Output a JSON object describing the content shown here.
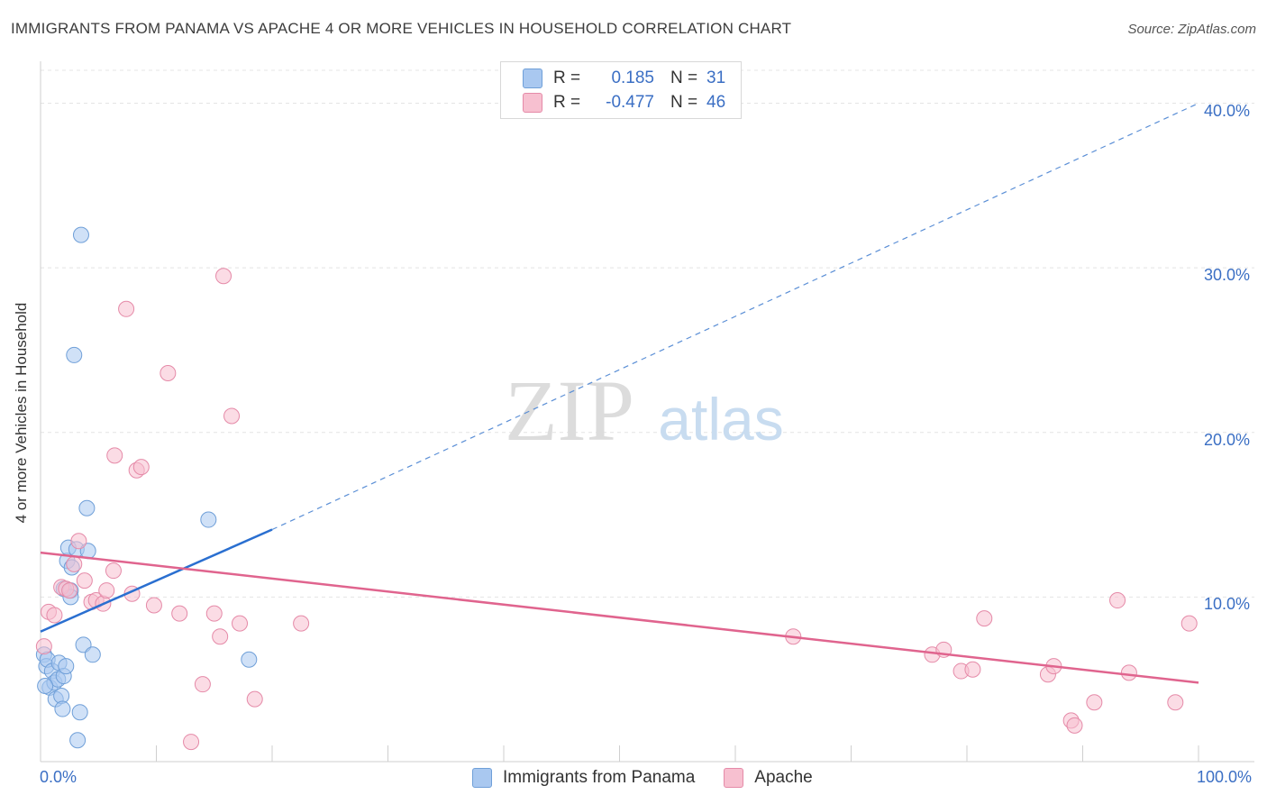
{
  "title": "IMMIGRANTS FROM PANAMA VS APACHE 4 OR MORE VEHICLES IN HOUSEHOLD CORRELATION CHART",
  "source": "Source: ZipAtlas.com",
  "watermark": {
    "zip": "ZIP",
    "atlas": "atlas"
  },
  "legend": {
    "rows": [
      {
        "r_label": "R =",
        "r_value": "0.185",
        "n_label": "N =",
        "n_value": "31",
        "color": "#a9c8f0",
        "border": "#6f9fd8"
      },
      {
        "r_label": "R =",
        "r_value": "-0.477",
        "n_label": "N =",
        "n_value": "46",
        "color": "#f7c0d0",
        "border": "#e58aa8"
      }
    ]
  },
  "chart_data": {
    "type": "scatter",
    "title": "IMMIGRANTS FROM PANAMA VS APACHE 4 OR MORE VEHICLES IN HOUSEHOLD CORRELATION CHART",
    "ylabel": "4 or more Vehicles in Household",
    "xlabel": "",
    "xlim": [
      0,
      100
    ],
    "ylim": [
      0,
      42
    ],
    "x_ticks": [
      {
        "value": 0,
        "label": "0.0%"
      },
      {
        "value": 100,
        "label": "100.0%"
      }
    ],
    "y_ticks": [
      {
        "value": 10,
        "label": "10.0%"
      },
      {
        "value": 20,
        "label": "20.0%"
      },
      {
        "value": 30,
        "label": "30.0%"
      },
      {
        "value": 40,
        "label": "40.0%"
      }
    ],
    "series": [
      {
        "name": "Immigrants from Panama",
        "color": "#6f9fd8",
        "fill": "#a9c8f0",
        "points": [
          [
            0.3,
            6.5
          ],
          [
            0.5,
            5.8
          ],
          [
            0.6,
            6.2
          ],
          [
            0.8,
            4.5
          ],
          [
            1.0,
            5.5
          ],
          [
            1.2,
            4.8
          ],
          [
            1.3,
            3.8
          ],
          [
            1.5,
            5.0
          ],
          [
            1.6,
            6.0
          ],
          [
            1.8,
            4.0
          ],
          [
            1.9,
            3.2
          ],
          [
            2.0,
            5.2
          ],
          [
            2.0,
            10.5
          ],
          [
            2.2,
            5.8
          ],
          [
            2.3,
            12.2
          ],
          [
            2.4,
            13.0
          ],
          [
            2.6,
            10.4
          ],
          [
            2.6,
            10.0
          ],
          [
            2.7,
            11.8
          ],
          [
            2.9,
            24.7
          ],
          [
            3.1,
            12.9
          ],
          [
            3.2,
            1.3
          ],
          [
            3.4,
            3.0
          ],
          [
            3.5,
            32.0
          ],
          [
            3.7,
            7.1
          ],
          [
            4.0,
            15.4
          ],
          [
            4.1,
            12.8
          ],
          [
            4.5,
            6.5
          ],
          [
            14.5,
            14.7
          ],
          [
            18.0,
            6.2
          ],
          [
            0.4,
            4.6
          ]
        ],
        "trend": {
          "x0": 0,
          "y0": 7.9,
          "x1": 20,
          "y1": 14.1,
          "dash_x1": 100,
          "dash_y1": 40.0
        }
      },
      {
        "name": "Apache",
        "color": "#e58aa8",
        "fill": "#f7c0d0",
        "points": [
          [
            0.3,
            7.0
          ],
          [
            0.7,
            9.1
          ],
          [
            1.2,
            8.9
          ],
          [
            1.8,
            10.6
          ],
          [
            2.2,
            10.5
          ],
          [
            2.5,
            10.4
          ],
          [
            2.9,
            12.0
          ],
          [
            3.3,
            13.4
          ],
          [
            3.8,
            11.0
          ],
          [
            4.4,
            9.7
          ],
          [
            4.8,
            9.8
          ],
          [
            5.4,
            9.6
          ],
          [
            5.7,
            10.4
          ],
          [
            6.3,
            11.6
          ],
          [
            7.4,
            27.5
          ],
          [
            7.9,
            10.2
          ],
          [
            8.3,
            17.7
          ],
          [
            8.7,
            17.9
          ],
          [
            6.4,
            18.6
          ],
          [
            9.8,
            9.5
          ],
          [
            11.0,
            23.6
          ],
          [
            12.0,
            9.0
          ],
          [
            13.0,
            1.2
          ],
          [
            14.0,
            4.7
          ],
          [
            15.0,
            9.0
          ],
          [
            15.5,
            7.6
          ],
          [
            15.8,
            29.5
          ],
          [
            16.5,
            21.0
          ],
          [
            17.2,
            8.4
          ],
          [
            18.5,
            3.8
          ],
          [
            22.5,
            8.4
          ],
          [
            65.0,
            7.6
          ],
          [
            77.0,
            6.5
          ],
          [
            78.0,
            6.8
          ],
          [
            79.5,
            5.5
          ],
          [
            80.5,
            5.6
          ],
          [
            81.5,
            8.7
          ],
          [
            87.0,
            5.3
          ],
          [
            87.5,
            5.8
          ],
          [
            89.0,
            2.5
          ],
          [
            89.3,
            2.2
          ],
          [
            91.0,
            3.6
          ],
          [
            93.0,
            9.8
          ],
          [
            94.0,
            5.4
          ],
          [
            98.0,
            3.6
          ],
          [
            99.2,
            8.4
          ]
        ],
        "trend": {
          "x0": 0,
          "y0": 12.7,
          "x1": 100,
          "y1": 4.8
        }
      }
    ],
    "grid": true,
    "legend_placement": "bottom"
  }
}
